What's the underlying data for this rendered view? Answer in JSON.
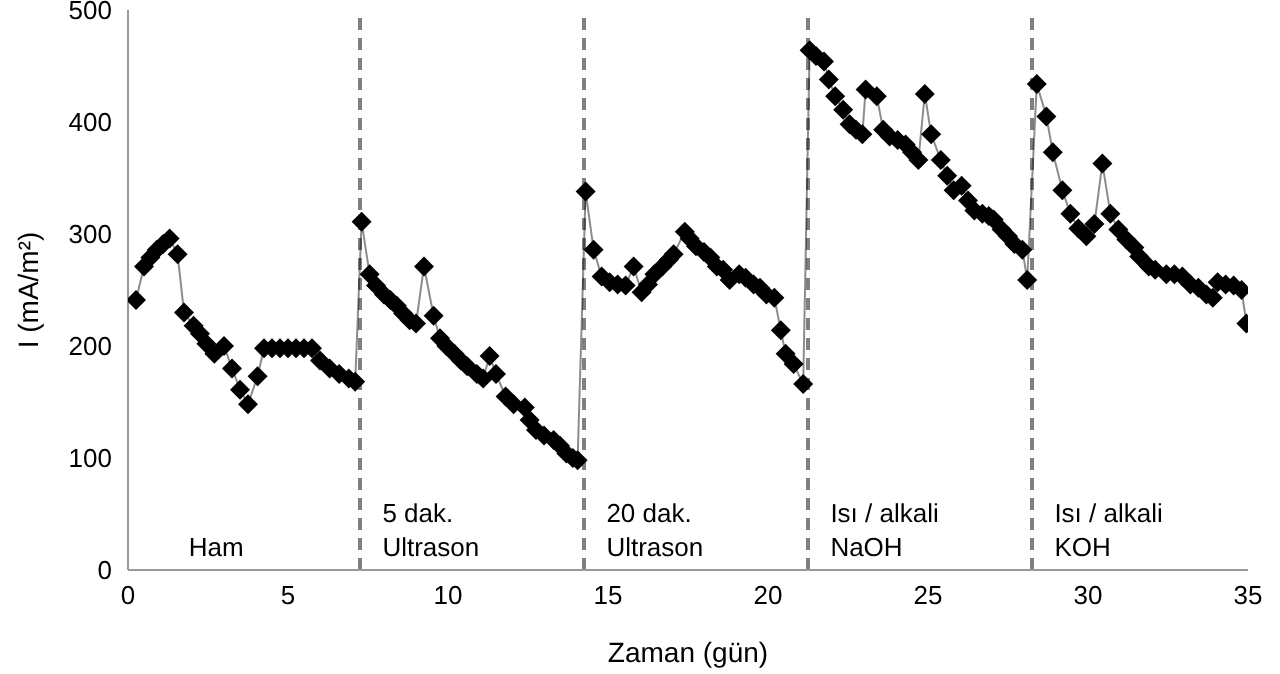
{
  "chart_data": {
    "type": "line",
    "xlabel": "Zaman (gün)",
    "ylabel": "I (mA/m²)",
    "x": [
      0.25,
      0.5,
      0.7,
      0.9,
      1.1,
      1.3,
      1.55,
      1.75,
      2.05,
      2.25,
      2.45,
      2.7,
      3.0,
      3.25,
      3.5,
      3.75,
      4.05,
      4.25,
      4.5,
      4.75,
      5.0,
      5.25,
      5.5,
      5.75,
      6.0,
      6.3,
      6.6,
      6.9,
      7.1,
      7.3,
      7.55,
      7.75,
      8.0,
      8.2,
      8.4,
      8.6,
      8.8,
      9.0,
      9.25,
      9.55,
      9.75,
      9.95,
      10.2,
      10.4,
      10.6,
      10.9,
      11.1,
      11.3,
      11.5,
      11.8,
      12.05,
      12.4,
      12.55,
      12.75,
      13.0,
      13.3,
      13.5,
      13.7,
      13.9,
      14.05,
      14.3,
      14.55,
      14.8,
      15.05,
      15.3,
      15.55,
      15.8,
      16.05,
      16.25,
      16.45,
      16.7,
      16.9,
      17.05,
      17.4,
      17.55,
      17.75,
      18.0,
      18.2,
      18.4,
      18.6,
      18.8,
      19.1,
      19.3,
      19.55,
      19.75,
      19.95,
      20.2,
      20.4,
      20.55,
      20.8,
      21.1,
      21.3,
      21.5,
      21.75,
      21.9,
      22.1,
      22.35,
      22.55,
      22.75,
      22.95,
      23.05,
      23.4,
      23.6,
      23.8,
      24.05,
      24.3,
      24.5,
      24.7,
      24.9,
      25.1,
      25.4,
      25.6,
      25.8,
      26.05,
      26.25,
      26.45,
      26.7,
      26.9,
      27.05,
      27.3,
      27.5,
      27.7,
      27.95,
      28.1,
      28.4,
      28.7,
      28.9,
      29.2,
      29.45,
      29.7,
      29.95,
      30.2,
      30.45,
      30.7,
      30.95,
      31.2,
      31.45,
      31.6,
      31.9,
      32.1,
      32.45,
      32.7,
      32.95,
      33.2,
      33.45,
      33.7,
      33.9,
      34.05,
      34.3,
      34.55,
      34.8,
      34.95
    ],
    "series": [
      {
        "color": "#000000",
        "values": [
          241,
          271,
          279,
          286,
          291,
          296,
          282,
          230,
          218,
          211,
          202,
          193,
          200,
          180,
          161,
          148,
          173,
          198,
          198,
          198,
          198,
          198,
          198,
          198,
          187,
          180,
          175,
          171,
          168,
          311,
          264,
          254,
          246,
          241,
          236,
          229,
          223,
          220,
          271,
          227,
          207,
          200,
          193,
          187,
          182,
          175,
          171,
          191,
          175,
          155,
          148,
          145,
          134,
          125,
          120,
          116,
          111,
          104,
          100,
          98,
          338,
          286,
          262,
          257,
          255,
          254,
          271,
          248,
          255,
          264,
          271,
          277,
          282,
          302,
          296,
          289,
          284,
          279,
          271,
          268,
          259,
          264,
          261,
          255,
          252,
          246,
          243,
          214,
          193,
          184,
          166,
          464,
          459,
          454,
          438,
          423,
          411,
          398,
          393,
          389,
          429,
          423,
          393,
          387,
          384,
          380,
          373,
          366,
          425,
          389,
          366,
          352,
          339,
          343,
          330,
          321,
          318,
          316,
          313,
          304,
          298,
          291,
          286,
          259,
          434,
          405,
          373,
          339,
          318,
          305,
          298,
          309,
          363,
          318,
          304,
          295,
          288,
          280,
          271,
          268,
          264,
          264,
          262,
          255,
          252,
          246,
          243,
          257,
          255,
          254,
          250,
          220
        ]
      }
    ],
    "xlim": [
      0,
      35
    ],
    "xticks": [
      0,
      5,
      10,
      15,
      20,
      25,
      30,
      35
    ],
    "ylim": [
      0,
      500
    ],
    "yticks": [
      0,
      100,
      200,
      300,
      400,
      500
    ],
    "grid": false,
    "legend": false,
    "marker": "diamond",
    "line_style": "solid",
    "ref_lines": [
      {
        "axis": "x",
        "value": 7.25,
        "color": "#808080",
        "line_style": "dashed"
      },
      {
        "axis": "x",
        "value": 14.25,
        "color": "#808080",
        "line_style": "dashed"
      },
      {
        "axis": "x",
        "value": 21.25,
        "color": "#808080",
        "line_style": "dashed"
      },
      {
        "axis": "x",
        "value": 28.25,
        "color": "#808080",
        "line_style": "dashed"
      }
    ],
    "annotations": [
      "Ham",
      "5 dak.\nUltrason",
      "20 dak.\nUltrason",
      "Isı / alkali\nNaOH",
      "Isı / alkali\nKOH"
    ]
  }
}
